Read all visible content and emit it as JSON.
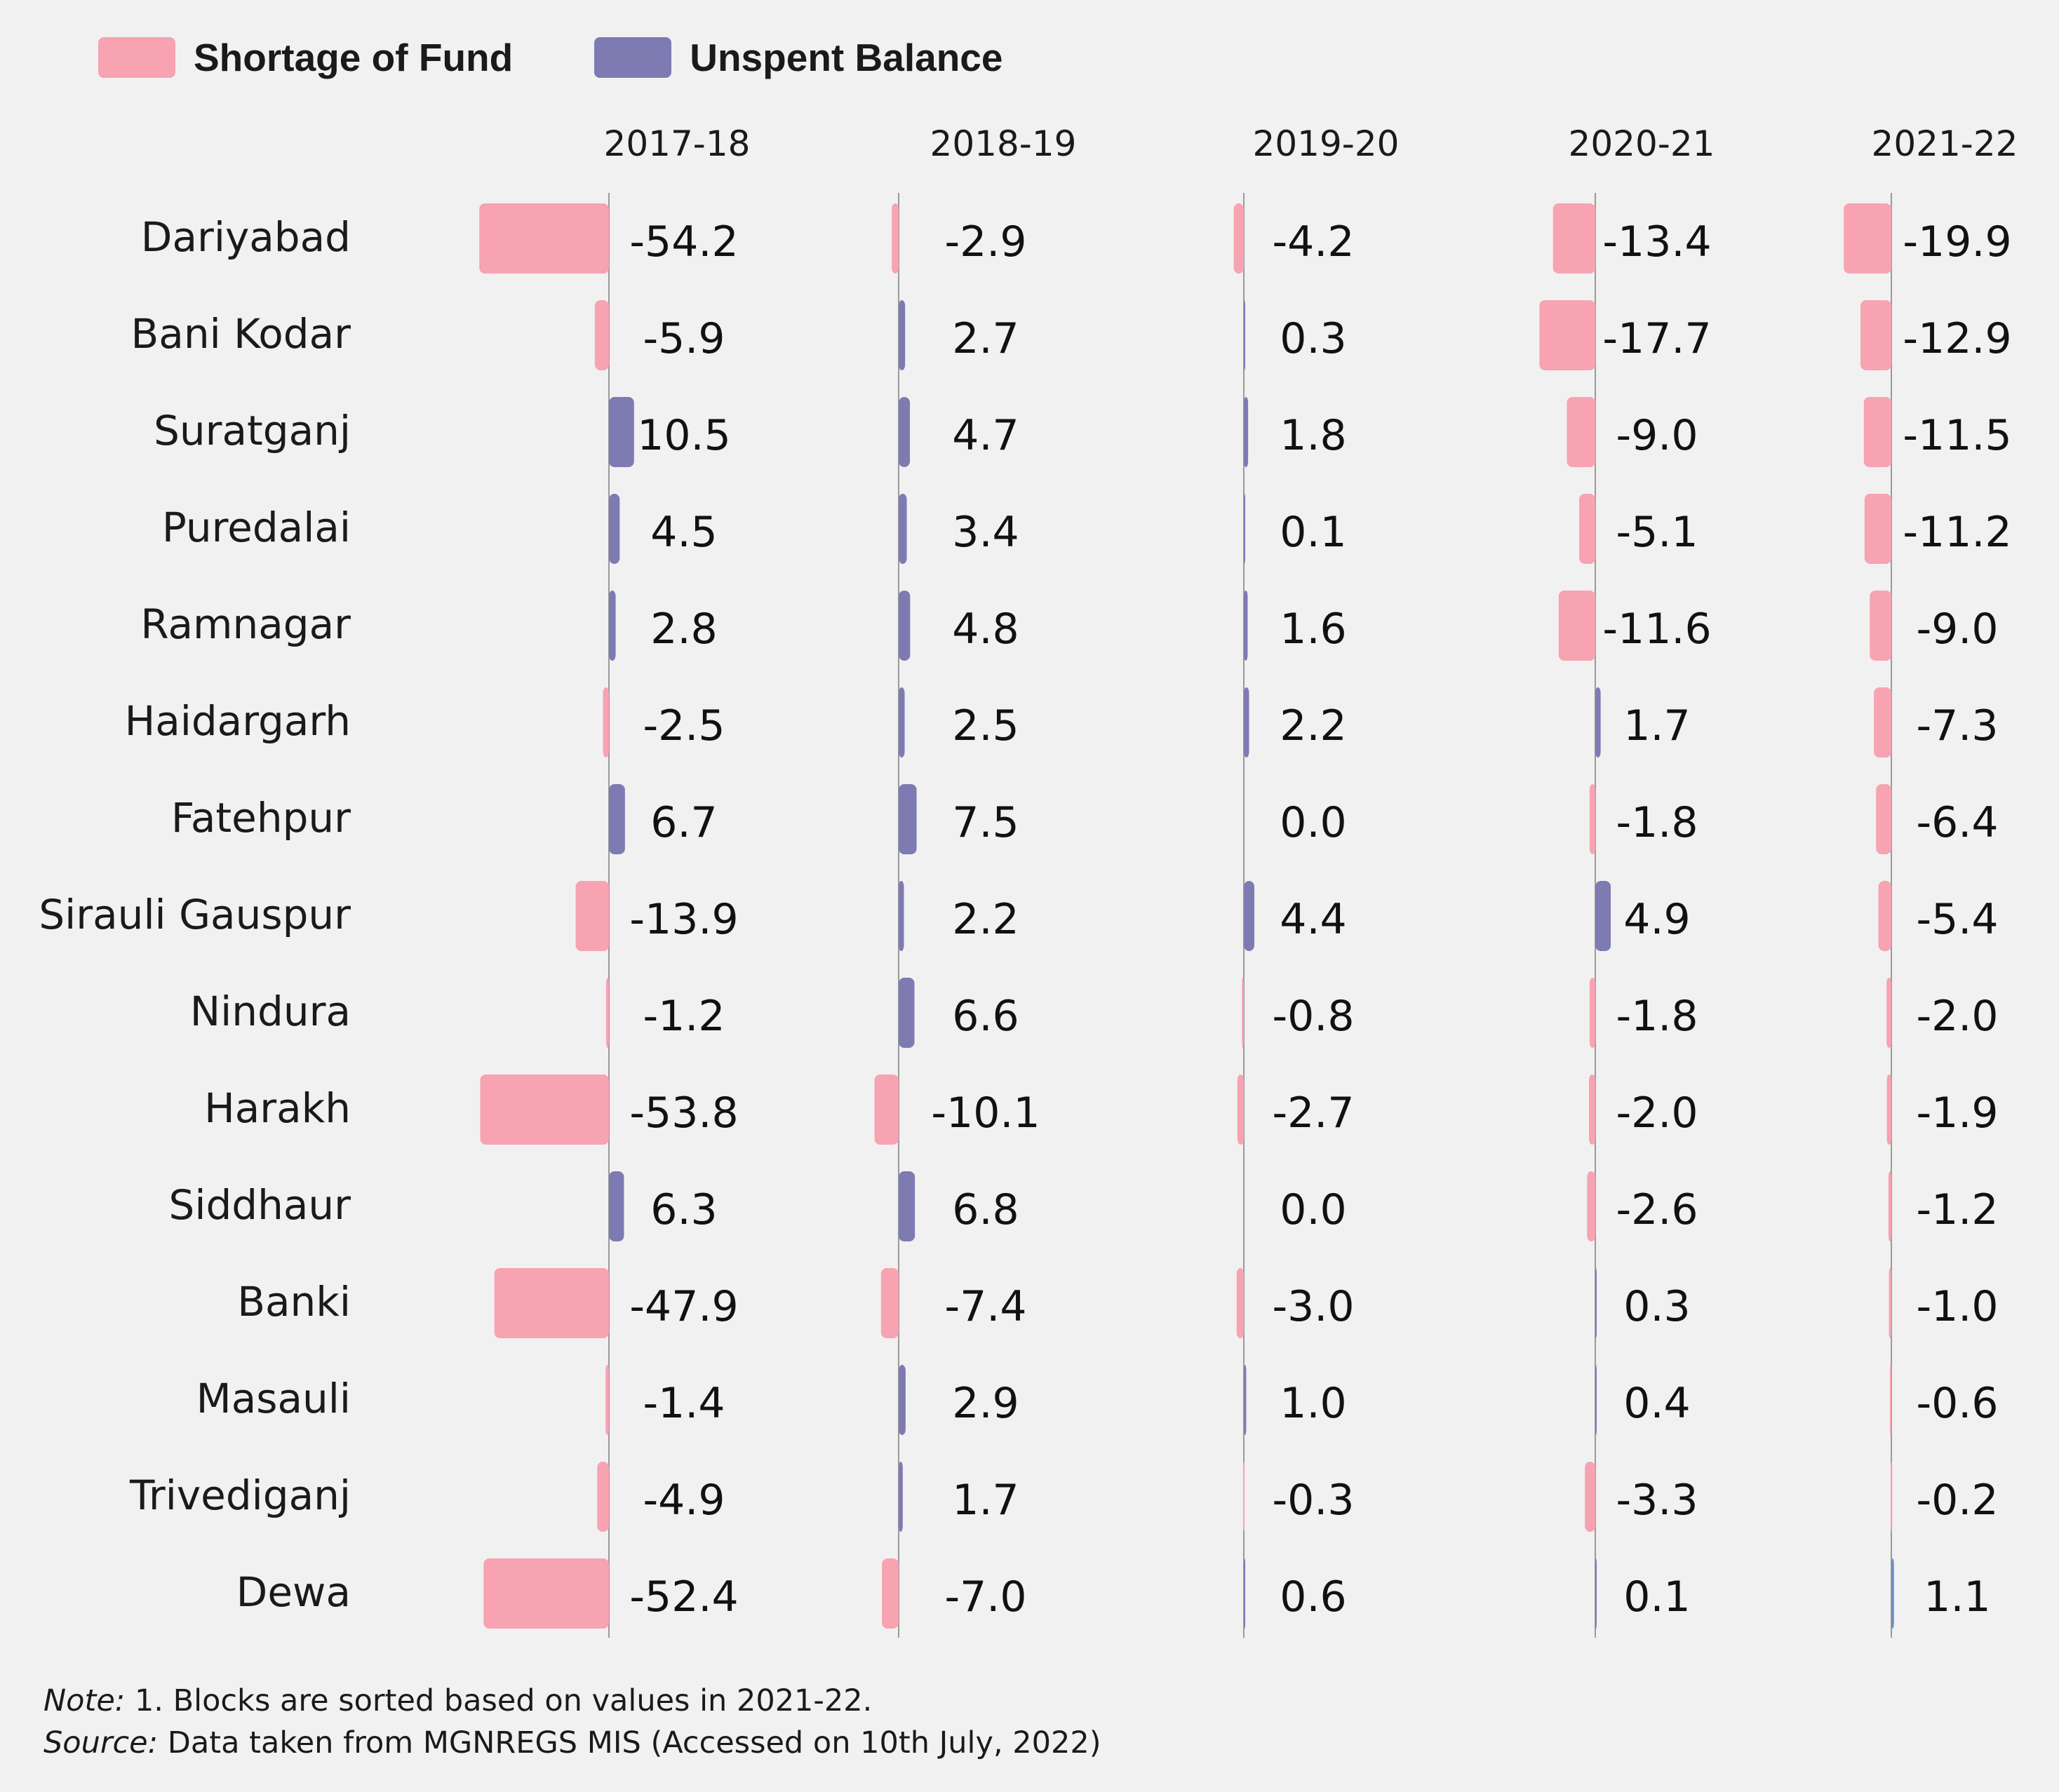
{
  "legend": {
    "shortage_label": "Shortage of Fund",
    "unspent_label": "Unspent Balance"
  },
  "colors": {
    "shortage": "#f7a3b1",
    "unspent": "#7e7bb2",
    "unspent_last_year": "#6c8fc6",
    "axis": "#9a9a9a",
    "background": "#f2f1f1"
  },
  "chart_data": {
    "type": "bar",
    "orientation": "horizontal",
    "panel_titles": [
      "2017-18",
      "2018-19",
      "2019-20",
      "2020-21",
      "2021-22"
    ],
    "categories": [
      "Dariyabad",
      "Bani Kodar",
      "Suratganj",
      "Puredalai",
      "Ramnagar",
      "Haidargarh",
      "Fatehpur",
      "Sirauli Gauspur",
      "Nindura",
      "Harakh",
      "Siddhaur",
      "Banki",
      "Masauli",
      "Trivediganj",
      "Dewa"
    ],
    "series": [
      {
        "name": "2017-18",
        "values": [
          -54.2,
          -5.9,
          10.5,
          4.5,
          2.8,
          -2.5,
          6.7,
          -13.9,
          -1.2,
          -53.8,
          6.3,
          -47.9,
          -1.4,
          -4.9,
          -52.4
        ]
      },
      {
        "name": "2018-19",
        "values": [
          -2.9,
          2.7,
          4.7,
          3.4,
          4.8,
          2.5,
          7.5,
          2.2,
          6.6,
          -10.1,
          6.8,
          -7.4,
          2.9,
          1.7,
          -7.0
        ]
      },
      {
        "name": "2019-20",
        "values": [
          -4.2,
          0.3,
          1.8,
          0.1,
          1.6,
          2.2,
          0.0,
          4.4,
          -0.8,
          -2.7,
          0.0,
          -3.0,
          1.0,
          -0.3,
          0.6
        ]
      },
      {
        "name": "2020-21",
        "values": [
          -13.4,
          -17.7,
          -9.0,
          -5.1,
          -11.6,
          1.7,
          -1.8,
          4.9,
          -1.8,
          -2.0,
          -2.6,
          0.3,
          0.4,
          -3.3,
          0.1
        ]
      },
      {
        "name": "2021-22",
        "values": [
          -19.9,
          -12.9,
          -11.5,
          -11.2,
          -9.0,
          -7.3,
          -6.4,
          -5.4,
          -2.0,
          -1.9,
          -1.2,
          -1.0,
          -0.6,
          -0.2,
          1.1
        ]
      }
    ],
    "negative_legend": "Shortage of Fund",
    "positive_legend": "Unspent Balance",
    "legend_position": "top-left",
    "grid": false
  },
  "notes": {
    "note_label": "Note:",
    "note_text": " 1. Blocks are sorted based on values in 2021-22.",
    "source_label": "Source:",
    "source_text": " Data taken from MGNREGS MIS (Accessed on 10th July, 2022)"
  }
}
